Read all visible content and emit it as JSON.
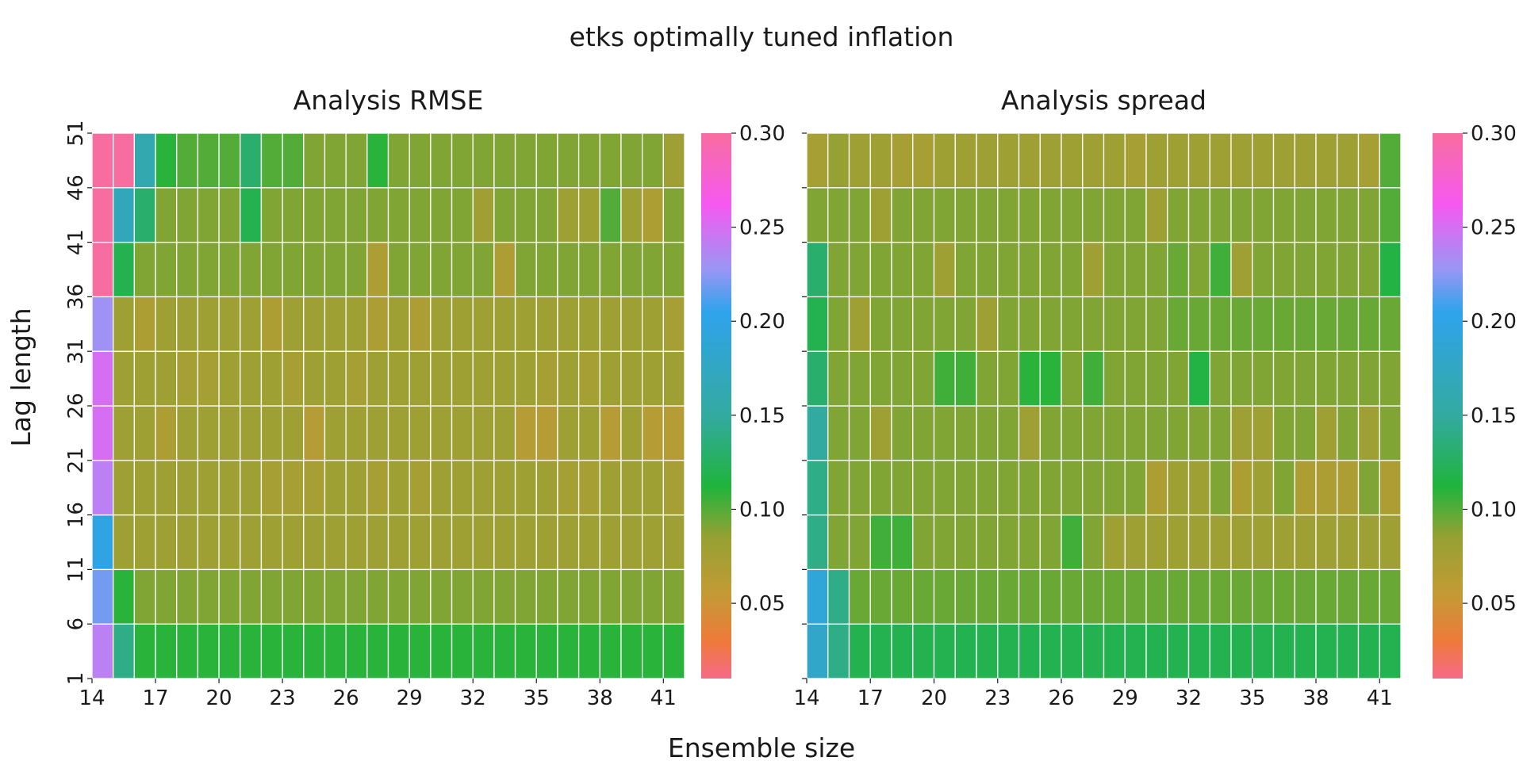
{
  "suptitle": "etks optimally tuned inflation",
  "xlabel": "Ensemble size",
  "ylabel": "Lag length",
  "colormap": {
    "name": "husl-like",
    "stops": [
      {
        "v": 0.01,
        "c": "#f66a87"
      },
      {
        "v": 0.03,
        "c": "#ee7a3a"
      },
      {
        "v": 0.055,
        "c": "#c49a35"
      },
      {
        "v": 0.085,
        "c": "#96a133"
      },
      {
        "v": 0.112,
        "c": "#20b43c"
      },
      {
        "v": 0.15,
        "c": "#33aaa0"
      },
      {
        "v": 0.205,
        "c": "#2fa3ec"
      },
      {
        "v": 0.228,
        "c": "#9b95f5"
      },
      {
        "v": 0.262,
        "c": "#f559f0"
      },
      {
        "v": 0.3,
        "c": "#f86da0"
      }
    ]
  },
  "chart_data": [
    {
      "type": "heatmap",
      "title": "Analysis RMSE",
      "x": [
        14,
        15,
        16,
        17,
        18,
        19,
        20,
        21,
        22,
        23,
        24,
        25,
        26,
        27,
        28,
        29,
        30,
        31,
        32,
        33,
        34,
        35,
        36,
        37,
        38,
        39,
        40,
        41
      ],
      "y": [
        1,
        6,
        11,
        16,
        21,
        26,
        31,
        36,
        41,
        46
      ],
      "xticks": [
        14,
        17,
        20,
        23,
        26,
        29,
        32,
        35,
        38,
        41
      ],
      "yticks": [
        1,
        6,
        11,
        16,
        21,
        26,
        31,
        36,
        41,
        46,
        51
      ],
      "vmin": 0.01,
      "vmax": 0.3,
      "colorbar_ticks": [
        "0.05",
        "0.10",
        "0.15",
        "0.20",
        "0.25",
        "0.30"
      ],
      "values": [
        [
          0.24,
          0.14,
          0.11,
          0.11,
          0.11,
          0.11,
          0.11,
          0.11,
          0.11,
          0.11,
          0.11,
          0.11,
          0.11,
          0.11,
          0.11,
          0.11,
          0.11,
          0.11,
          0.11,
          0.11,
          0.11,
          0.11,
          0.11,
          0.11,
          0.11,
          0.11,
          0.11,
          0.11
        ],
        [
          0.22,
          0.11,
          0.09,
          0.09,
          0.09,
          0.09,
          0.09,
          0.09,
          0.09,
          0.09,
          0.09,
          0.09,
          0.09,
          0.09,
          0.09,
          0.09,
          0.09,
          0.09,
          0.09,
          0.09,
          0.09,
          0.09,
          0.09,
          0.09,
          0.09,
          0.09,
          0.09,
          0.09
        ],
        [
          0.2,
          0.08,
          0.08,
          0.08,
          0.08,
          0.08,
          0.08,
          0.08,
          0.08,
          0.08,
          0.08,
          0.08,
          0.08,
          0.08,
          0.08,
          0.08,
          0.08,
          0.08,
          0.08,
          0.08,
          0.08,
          0.08,
          0.08,
          0.08,
          0.08,
          0.08,
          0.08,
          0.08
        ],
        [
          0.24,
          0.08,
          0.08,
          0.08,
          0.08,
          0.08,
          0.08,
          0.08,
          0.075,
          0.075,
          0.075,
          0.08,
          0.08,
          0.075,
          0.08,
          0.075,
          0.08,
          0.08,
          0.08,
          0.08,
          0.08,
          0.08,
          0.075,
          0.075,
          0.08,
          0.08,
          0.08,
          0.075
        ],
        [
          0.25,
          0.08,
          0.08,
          0.07,
          0.08,
          0.08,
          0.08,
          0.08,
          0.08,
          0.08,
          0.065,
          0.08,
          0.08,
          0.08,
          0.08,
          0.08,
          0.08,
          0.08,
          0.08,
          0.08,
          0.065,
          0.065,
          0.08,
          0.08,
          0.065,
          0.08,
          0.065,
          0.065
        ],
        [
          0.25,
          0.08,
          0.08,
          0.08,
          0.075,
          0.075,
          0.08,
          0.08,
          0.08,
          0.075,
          0.08,
          0.08,
          0.075,
          0.08,
          0.08,
          0.08,
          0.08,
          0.08,
          0.08,
          0.08,
          0.08,
          0.075,
          0.08,
          0.075,
          0.08,
          0.08,
          0.08,
          0.08
        ],
        [
          0.23,
          0.08,
          0.07,
          0.08,
          0.08,
          0.08,
          0.08,
          0.08,
          0.07,
          0.08,
          0.08,
          0.08,
          0.08,
          0.07,
          0.08,
          0.07,
          0.08,
          0.08,
          0.08,
          0.08,
          0.08,
          0.08,
          0.08,
          0.08,
          0.08,
          0.08,
          0.08,
          0.075
        ],
        [
          0.3,
          0.12,
          0.09,
          0.09,
          0.09,
          0.09,
          0.09,
          0.09,
          0.09,
          0.09,
          0.09,
          0.09,
          0.09,
          0.07,
          0.09,
          0.09,
          0.09,
          0.09,
          0.09,
          0.07,
          0.09,
          0.09,
          0.09,
          0.09,
          0.09,
          0.09,
          0.09,
          0.09
        ],
        [
          0.3,
          0.17,
          0.13,
          0.09,
          0.09,
          0.09,
          0.09,
          0.12,
          0.09,
          0.09,
          0.09,
          0.09,
          0.09,
          0.09,
          0.09,
          0.09,
          0.09,
          0.09,
          0.08,
          0.09,
          0.09,
          0.09,
          0.08,
          0.08,
          0.1,
          0.08,
          0.07,
          0.09
        ],
        [
          0.3,
          0.3,
          0.16,
          0.11,
          0.1,
          0.1,
          0.1,
          0.13,
          0.1,
          0.1,
          0.09,
          0.09,
          0.09,
          0.11,
          0.09,
          0.09,
          0.09,
          0.09,
          0.09,
          0.09,
          0.09,
          0.09,
          0.09,
          0.09,
          0.09,
          0.09,
          0.09,
          0.08
        ]
      ]
    },
    {
      "type": "heatmap",
      "title": "Analysis spread",
      "x": [
        14,
        15,
        16,
        17,
        18,
        19,
        20,
        21,
        22,
        23,
        24,
        25,
        26,
        27,
        28,
        29,
        30,
        31,
        32,
        33,
        34,
        35,
        36,
        37,
        38,
        39,
        40,
        41
      ],
      "y": [
        1,
        6,
        11,
        16,
        21,
        26,
        31,
        36,
        41,
        46
      ],
      "xticks": [
        14,
        17,
        20,
        23,
        26,
        29,
        32,
        35,
        38,
        41
      ],
      "yticks": [
        1,
        6,
        11,
        16,
        21,
        26,
        31,
        36,
        41,
        46,
        51
      ],
      "vmin": 0.01,
      "vmax": 0.3,
      "colorbar_ticks": [
        "0.05",
        "0.10",
        "0.15",
        "0.20",
        "0.25",
        "0.30"
      ],
      "values": [
        [
          0.18,
          0.14,
          0.12,
          0.12,
          0.12,
          0.12,
          0.12,
          0.12,
          0.12,
          0.12,
          0.12,
          0.12,
          0.12,
          0.12,
          0.12,
          0.12,
          0.12,
          0.12,
          0.12,
          0.12,
          0.12,
          0.12,
          0.12,
          0.12,
          0.12,
          0.12,
          0.12,
          0.12
        ],
        [
          0.19,
          0.14,
          0.095,
          0.095,
          0.095,
          0.095,
          0.095,
          0.095,
          0.095,
          0.095,
          0.095,
          0.095,
          0.095,
          0.095,
          0.095,
          0.095,
          0.095,
          0.095,
          0.095,
          0.095,
          0.095,
          0.095,
          0.095,
          0.095,
          0.095,
          0.095,
          0.095,
          0.095
        ],
        [
          0.14,
          0.09,
          0.09,
          0.105,
          0.105,
          0.09,
          0.09,
          0.09,
          0.09,
          0.09,
          0.09,
          0.09,
          0.105,
          0.09,
          0.08,
          0.08,
          0.08,
          0.08,
          0.08,
          0.08,
          0.08,
          0.08,
          0.08,
          0.08,
          0.08,
          0.08,
          0.08,
          0.08
        ],
        [
          0.14,
          0.09,
          0.09,
          0.09,
          0.09,
          0.09,
          0.09,
          0.09,
          0.09,
          0.09,
          0.09,
          0.09,
          0.09,
          0.09,
          0.09,
          0.09,
          0.07,
          0.08,
          0.08,
          0.09,
          0.07,
          0.08,
          0.09,
          0.07,
          0.07,
          0.07,
          0.09,
          0.07
        ],
        [
          0.15,
          0.09,
          0.09,
          0.08,
          0.09,
          0.09,
          0.09,
          0.09,
          0.09,
          0.09,
          0.08,
          0.09,
          0.09,
          0.09,
          0.09,
          0.09,
          0.09,
          0.09,
          0.09,
          0.09,
          0.08,
          0.08,
          0.09,
          0.09,
          0.08,
          0.09,
          0.08,
          0.09
        ],
        [
          0.13,
          0.09,
          0.09,
          0.09,
          0.09,
          0.09,
          0.105,
          0.105,
          0.09,
          0.09,
          0.11,
          0.11,
          0.09,
          0.105,
          0.09,
          0.09,
          0.09,
          0.09,
          0.115,
          0.09,
          0.09,
          0.09,
          0.09,
          0.09,
          0.09,
          0.09,
          0.09,
          0.09
        ],
        [
          0.12,
          0.09,
          0.08,
          0.09,
          0.09,
          0.09,
          0.09,
          0.09,
          0.08,
          0.09,
          0.09,
          0.09,
          0.09,
          0.09,
          0.09,
          0.09,
          0.09,
          0.095,
          0.095,
          0.095,
          0.095,
          0.095,
          0.095,
          0.095,
          0.095,
          0.095,
          0.095,
          0.095
        ],
        [
          0.13,
          0.09,
          0.09,
          0.09,
          0.09,
          0.09,
          0.08,
          0.09,
          0.09,
          0.09,
          0.09,
          0.09,
          0.09,
          0.08,
          0.09,
          0.09,
          0.09,
          0.095,
          0.09,
          0.105,
          0.08,
          0.09,
          0.09,
          0.09,
          0.09,
          0.09,
          0.09,
          0.115
        ],
        [
          0.09,
          0.09,
          0.09,
          0.08,
          0.09,
          0.09,
          0.09,
          0.09,
          0.09,
          0.09,
          0.09,
          0.09,
          0.09,
          0.09,
          0.09,
          0.09,
          0.08,
          0.09,
          0.09,
          0.09,
          0.09,
          0.09,
          0.09,
          0.09,
          0.09,
          0.09,
          0.09,
          0.1
        ],
        [
          0.075,
          0.085,
          0.08,
          0.08,
          0.075,
          0.075,
          0.08,
          0.08,
          0.08,
          0.08,
          0.08,
          0.08,
          0.08,
          0.08,
          0.08,
          0.075,
          0.08,
          0.08,
          0.08,
          0.08,
          0.08,
          0.08,
          0.08,
          0.08,
          0.08,
          0.08,
          0.075,
          0.1
        ]
      ]
    }
  ]
}
